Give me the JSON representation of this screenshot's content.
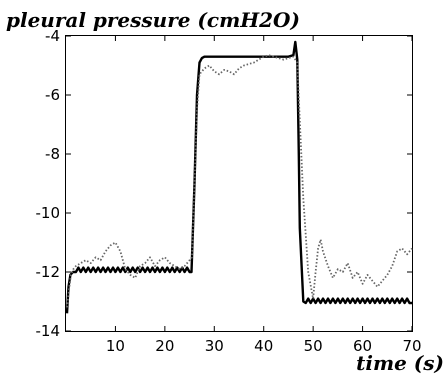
{
  "chart_data": {
    "type": "line",
    "title": "pleural pressure (cmH2O)",
    "xlabel": "time (s)",
    "ylabel": "",
    "xlim": [
      0,
      70
    ],
    "ylim": [
      -14,
      -4
    ],
    "xticks": [
      10,
      20,
      30,
      40,
      50,
      60,
      70
    ],
    "yticks": [
      -4,
      -6,
      -8,
      -10,
      -12,
      -14
    ],
    "grid": false,
    "legend": "none",
    "series": [
      {
        "style": "solid",
        "color": "#000000",
        "x": [
          0.2,
          0.5,
          0.9,
          1.4,
          2.0,
          2.5,
          3.0,
          3.5,
          4.0,
          4.5,
          5.0,
          5.5,
          6.0,
          6.5,
          7.0,
          7.5,
          8.0,
          8.5,
          9.0,
          9.5,
          10.0,
          10.5,
          11.0,
          11.5,
          12.0,
          12.5,
          13.0,
          13.5,
          14.0,
          14.5,
          15.0,
          15.5,
          16.0,
          16.5,
          17.0,
          17.5,
          18.0,
          18.5,
          19.0,
          19.5,
          20.0,
          20.5,
          21.0,
          21.5,
          22.0,
          22.5,
          23.0,
          23.5,
          24.0,
          24.5,
          25.0,
          25.4,
          26.0,
          26.5,
          27.0,
          27.5,
          28.0,
          29.0,
          30.0,
          32.0,
          34.0,
          36.0,
          38.0,
          40.0,
          42.0,
          44.0,
          45.0,
          46.0,
          46.4,
          46.8,
          47.1,
          47.3,
          48.0,
          48.5,
          49.0,
          49.5,
          50.0,
          50.5,
          51.0,
          51.5,
          52.0,
          52.5,
          53.0,
          53.5,
          54.0,
          54.5,
          55.0,
          55.5,
          56.0,
          56.5,
          57.0,
          57.5,
          58.0,
          58.5,
          59.0,
          59.5,
          60.0,
          60.5,
          61.0,
          61.5,
          62.0,
          62.5,
          63.0,
          63.5,
          64.0,
          64.5,
          65.0,
          65.5,
          66.0,
          66.5,
          67.0,
          67.5,
          68.0,
          68.5,
          69.0,
          69.5,
          70.0
        ],
        "y": [
          -13.4,
          -12.5,
          -12.1,
          -12.0,
          -12.0,
          -11.85,
          -12.0,
          -11.85,
          -12.0,
          -11.85,
          -12.0,
          -11.85,
          -12.0,
          -11.85,
          -12.0,
          -11.85,
          -12.0,
          -11.85,
          -12.0,
          -11.85,
          -12.0,
          -11.85,
          -12.0,
          -11.85,
          -12.0,
          -11.85,
          -12.0,
          -11.85,
          -12.0,
          -11.85,
          -12.0,
          -11.85,
          -12.0,
          -11.85,
          -12.0,
          -11.85,
          -12.0,
          -11.85,
          -12.0,
          -11.85,
          -12.0,
          -11.85,
          -12.0,
          -11.85,
          -12.0,
          -11.85,
          -12.0,
          -11.85,
          -12.0,
          -11.85,
          -12.0,
          -12.0,
          -9.0,
          -6.0,
          -4.9,
          -4.75,
          -4.7,
          -4.7,
          -4.7,
          -4.7,
          -4.7,
          -4.7,
          -4.7,
          -4.7,
          -4.7,
          -4.7,
          -4.7,
          -4.65,
          -4.2,
          -4.8,
          -8.0,
          -10.5,
          -13.0,
          -13.05,
          -12.9,
          -13.05,
          -12.9,
          -13.05,
          -12.9,
          -13.05,
          -12.9,
          -13.05,
          -12.9,
          -13.05,
          -12.9,
          -13.05,
          -12.9,
          -13.05,
          -12.9,
          -13.05,
          -12.9,
          -13.05,
          -12.9,
          -13.05,
          -12.9,
          -13.05,
          -12.9,
          -13.05,
          -12.9,
          -13.05,
          -12.9,
          -13.05,
          -12.9,
          -13.05,
          -12.9,
          -13.05,
          -12.9,
          -13.05,
          -12.9,
          -13.05,
          -12.9,
          -13.05,
          -12.9,
          -13.05,
          -12.9,
          -13.05,
          -13.05
        ]
      },
      {
        "style": "dotted",
        "color": "#666666",
        "x": [
          0.2,
          0.6,
          1.0,
          1.5,
          2.0,
          3.0,
          4.0,
          5.0,
          6.0,
          7.0,
          8.0,
          9.0,
          10.0,
          11.0,
          12.0,
          13.0,
          14.0,
          15.0,
          16.0,
          17.0,
          18.0,
          19.0,
          20.0,
          21.0,
          22.0,
          23.0,
          24.0,
          25.0,
          25.5,
          26.0,
          26.5,
          27.0,
          27.5,
          28.0,
          29.0,
          30.0,
          31.0,
          32.0,
          33.0,
          34.0,
          35.0,
          36.0,
          37.0,
          38.0,
          39.0,
          40.0,
          41.0,
          42.0,
          43.0,
          44.0,
          45.0,
          46.0,
          46.8,
          47.2,
          48.0,
          49.0,
          50.0,
          50.5,
          51.0,
          51.5,
          52.0,
          53.0,
          54.0,
          55.0,
          56.0,
          57.0,
          58.0,
          59.0,
          60.0,
          61.0,
          62.0,
          63.0,
          64.0,
          65.0,
          66.0,
          67.0,
          68.0,
          69.0,
          70.0
        ],
        "y": [
          -13.2,
          -12.6,
          -12.1,
          -11.9,
          -11.8,
          -11.7,
          -11.6,
          -11.7,
          -11.5,
          -11.6,
          -11.3,
          -11.1,
          -11.0,
          -11.3,
          -11.9,
          -12.1,
          -12.2,
          -11.8,
          -11.7,
          -11.5,
          -11.8,
          -11.6,
          -11.5,
          -11.7,
          -11.8,
          -11.9,
          -11.8,
          -11.6,
          -11.5,
          -9.0,
          -6.5,
          -5.3,
          -5.2,
          -5.1,
          -5.0,
          -5.2,
          -5.3,
          -5.15,
          -5.2,
          -5.3,
          -5.1,
          -5.0,
          -4.95,
          -4.9,
          -4.8,
          -4.7,
          -4.65,
          -4.7,
          -4.75,
          -4.8,
          -4.75,
          -4.7,
          -4.9,
          -6.5,
          -9.5,
          -12.0,
          -12.9,
          -12.0,
          -11.2,
          -10.9,
          -11.3,
          -11.8,
          -12.2,
          -11.9,
          -12.0,
          -11.7,
          -12.2,
          -12.0,
          -12.4,
          -12.1,
          -12.3,
          -12.5,
          -12.3,
          -12.1,
          -11.8,
          -11.3,
          -11.2,
          -11.4,
          -11.2
        ]
      }
    ]
  }
}
